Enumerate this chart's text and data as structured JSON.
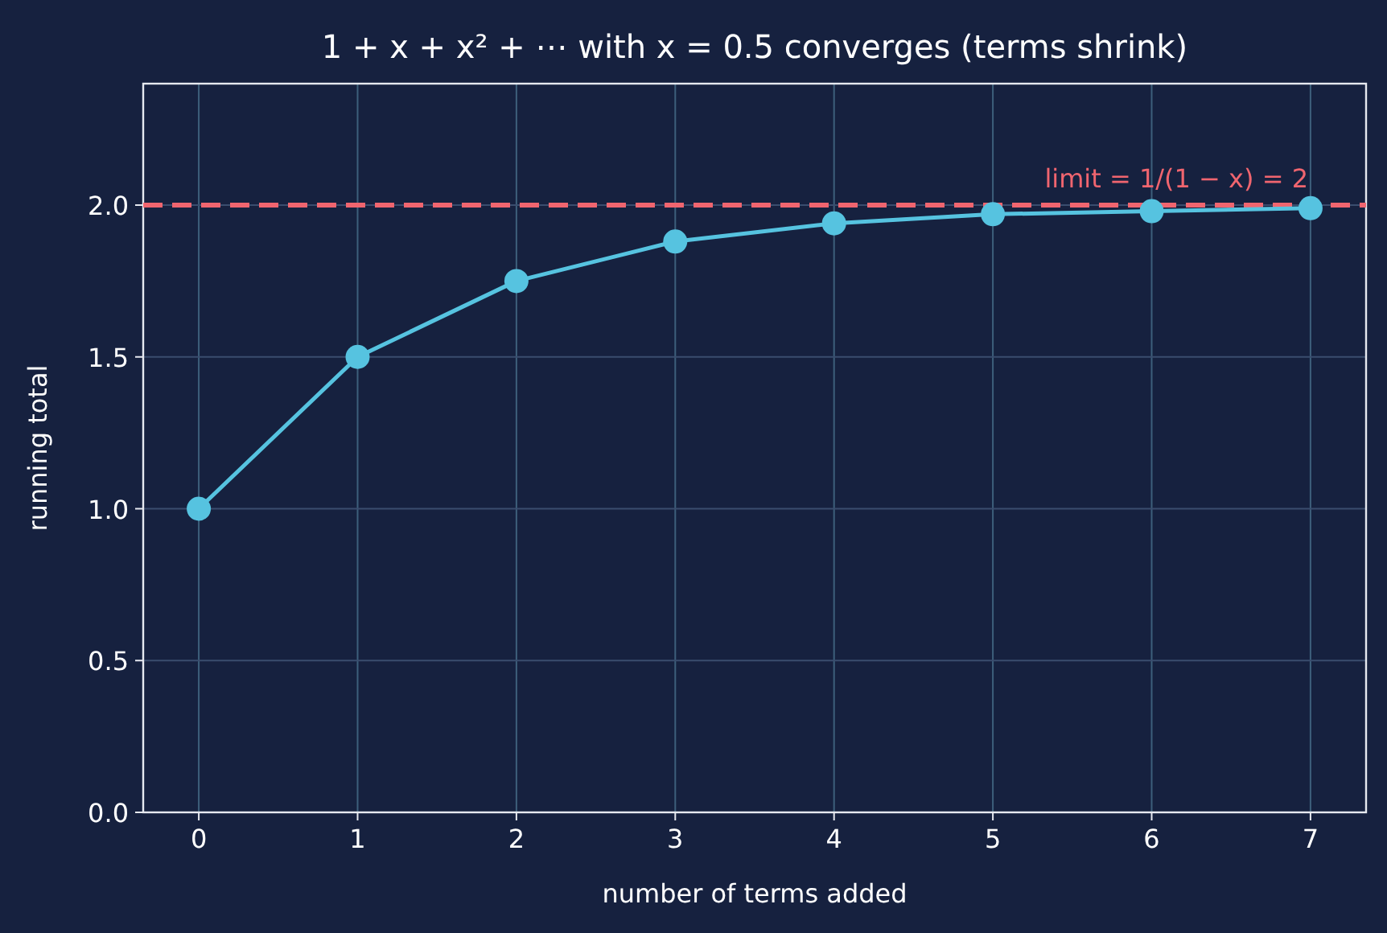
{
  "chart_data": {
    "type": "line",
    "title": "1 + x + x² + ⋯ with x = 0.5 converges (terms shrink)",
    "xlabel": "number of terms added",
    "ylabel": "running total",
    "x": [
      0,
      1,
      2,
      3,
      4,
      5,
      6,
      7
    ],
    "series": [
      {
        "color": "#56c3e0",
        "values": [
          1,
          1.5,
          1.75,
          1.88,
          1.94,
          1.97,
          1.98,
          1.99
        ]
      }
    ],
    "xlim": [
      -0.35,
      7.35
    ],
    "ylim": [
      0,
      2.4
    ],
    "xticks": [
      0,
      1,
      2,
      3,
      4,
      5,
      6,
      7
    ],
    "yticks": [
      {
        "value": 0,
        "label": "0.0"
      },
      {
        "value": 0.5,
        "label": "0.5"
      },
      {
        "value": 1,
        "label": "1.0"
      },
      {
        "value": 1.5,
        "label": "1.5"
      },
      {
        "value": 2,
        "label": "2.0"
      }
    ],
    "grid": true,
    "marker": "circle",
    "line_style": "solid",
    "ref_lines": [
      {
        "axis": "y",
        "value": 2,
        "label": "limit = 1/(1 − x) = 2",
        "color": "#f0656f",
        "line_style": "dashed"
      }
    ]
  }
}
